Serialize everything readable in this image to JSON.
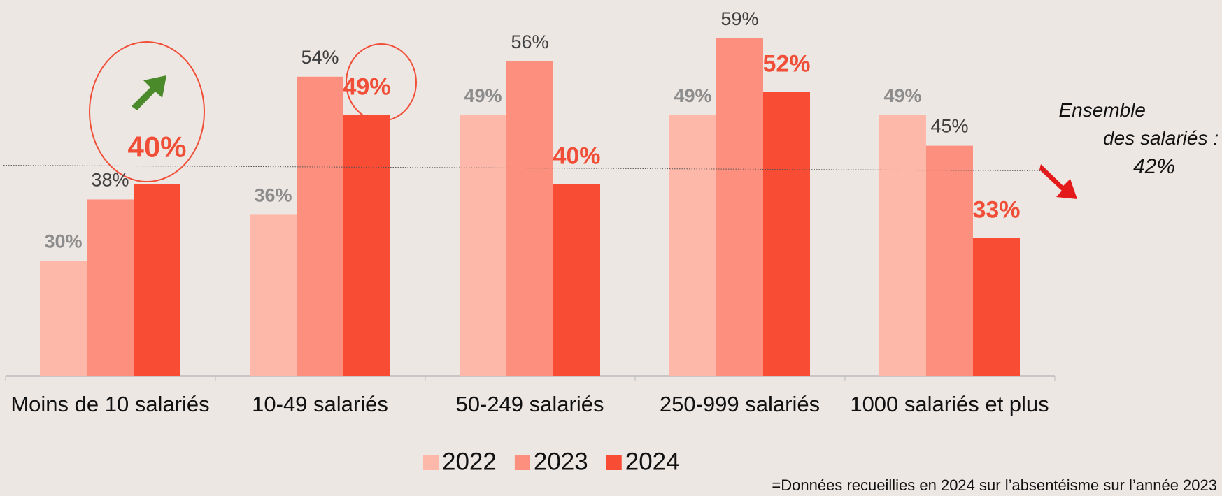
{
  "chart_data": {
    "type": "bar",
    "categories": [
      "Moins de 10 salariés",
      "10-49 salariés",
      "50-249 salariés",
      "250-999 salariés",
      "1000 salariés et plus"
    ],
    "series": [
      {
        "name": "2022",
        "color": "#fdb8aa",
        "values": [
          30,
          36,
          49,
          49,
          49
        ],
        "value_labels": [
          "30%",
          "36%",
          "49%",
          "49%",
          "49%"
        ]
      },
      {
        "name": "2023",
        "color": "#fd8f7e",
        "values": [
          38,
          54,
          56,
          59,
          45
        ],
        "value_labels": [
          "38%",
          "54%",
          "56%",
          "59%",
          "45%"
        ]
      },
      {
        "name": "2024",
        "color": "#f84c35",
        "values": [
          40,
          49,
          40,
          52,
          33
        ],
        "value_labels": [
          "40%",
          "49%",
          "40%",
          "52%",
          "33%"
        ]
      }
    ],
    "ylim": [
      15,
      64
    ],
    "reference_line": {
      "value": 42,
      "label": "Ensemble des salariés :",
      "value_label": "42%"
    },
    "footnote": "=Données recueillies en 2024 sur l’absentéisme sur l’année 2023"
  }
}
